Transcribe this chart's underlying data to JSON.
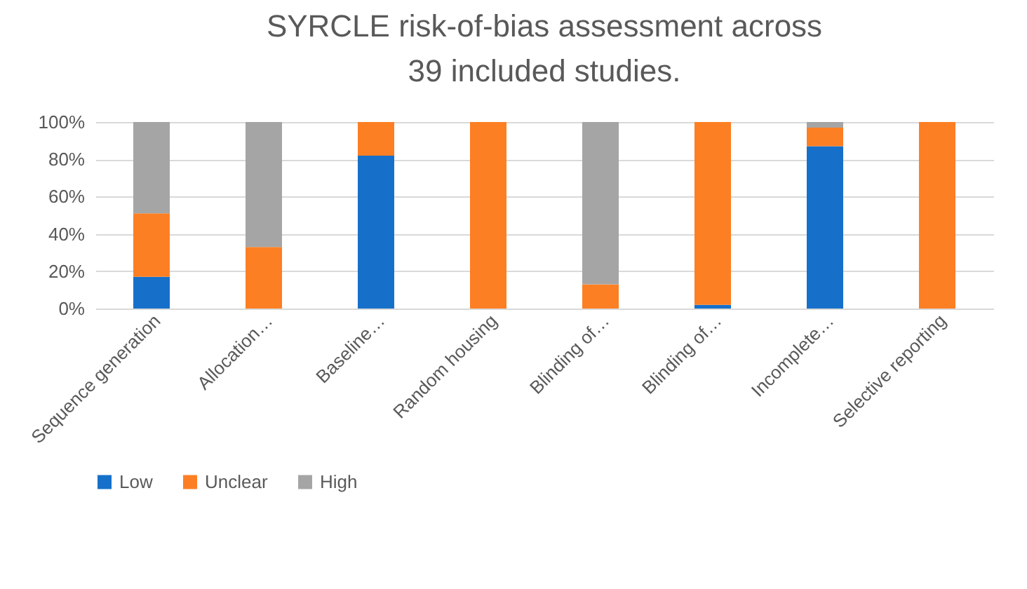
{
  "chart_data": {
    "type": "bar",
    "title": "SYRCLE risk-of-bias assessment across 39 included studies.",
    "categories": [
      "Sequence generation",
      "Allocation…",
      "Baseline…",
      "Random housing",
      "Blinding of…",
      "Blinding of…",
      "Incomplete…",
      "Selective reporting"
    ],
    "stacked": true,
    "series": [
      {
        "name": "Low",
        "color": "#1670c9",
        "values": [
          17,
          0,
          82,
          0,
          0,
          2,
          87,
          0
        ]
      },
      {
        "name": "Unclear",
        "color": "#fd7f23",
        "values": [
          34,
          33,
          18,
          100,
          13,
          98,
          10,
          100
        ]
      },
      {
        "name": "High",
        "color": "#a5a5a5",
        "values": [
          49,
          67,
          0,
          0,
          87,
          0,
          3,
          0
        ]
      }
    ],
    "ylim": [
      0,
      100
    ],
    "yticks": [
      {
        "value": 0,
        "label": "0%"
      },
      {
        "value": 20,
        "label": "20%"
      },
      {
        "value": 40,
        "label": "40%"
      },
      {
        "value": 60,
        "label": "60%"
      },
      {
        "value": 80,
        "label": "80%"
      },
      {
        "value": 100,
        "label": "100%"
      }
    ],
    "grid": "y",
    "legend": "bottom"
  }
}
